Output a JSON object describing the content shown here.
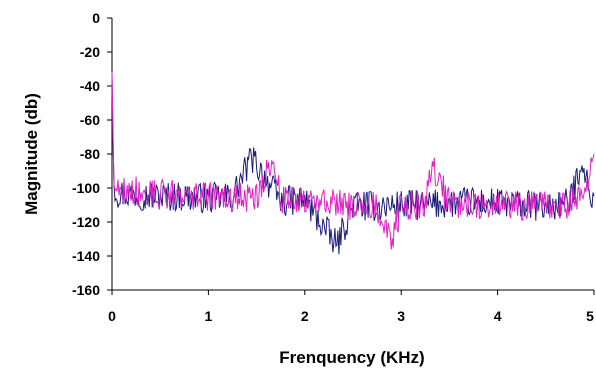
{
  "chart_data": {
    "type": "line",
    "title": "",
    "xlabel": "Frenquency (KHz)",
    "ylabel": "Magnitude (db)",
    "xlim": [
      0,
      5
    ],
    "ylim": [
      -160,
      0
    ],
    "x_ticks": [
      "0",
      "1",
      "2",
      "3",
      "4",
      "5"
    ],
    "y_ticks": [
      "0",
      "-20",
      "-40",
      "-60",
      "-80",
      "-100",
      "-120",
      "-140",
      "-160"
    ],
    "grid": false,
    "legend": "none",
    "series": [
      {
        "color": "#1a1a7a",
        "x": [
          0,
          0.02,
          0.05,
          0.25,
          0.5,
          0.75,
          1.0,
          1.25,
          1.45,
          1.75,
          2.0,
          2.33,
          2.5,
          2.75,
          3.0,
          3.25,
          3.5,
          3.75,
          4.0,
          4.25,
          4.5,
          4.75,
          4.88,
          4.95,
          5.0
        ],
        "y": [
          -33,
          -98,
          -103,
          -104,
          -105,
          -105,
          -106,
          -105,
          -82,
          -108,
          -107,
          -134,
          -110,
          -111,
          -110,
          -110,
          -109,
          -108,
          -109,
          -110,
          -111,
          -109,
          -82,
          -105,
          -103
        ]
      },
      {
        "color": "#e020c8",
        "x": [
          0,
          0.02,
          0.05,
          0.25,
          0.5,
          0.75,
          1.0,
          1.25,
          1.5,
          1.65,
          1.75,
          2.0,
          2.25,
          2.5,
          2.75,
          2.9,
          3.0,
          3.25,
          3.33,
          3.5,
          3.75,
          4.0,
          4.25,
          4.5,
          4.75,
          4.95,
          5.0
        ],
        "y": [
          -32,
          -98,
          -100,
          -102,
          -104,
          -104,
          -105,
          -106,
          -106,
          -83,
          -106,
          -108,
          -108,
          -110,
          -111,
          -133,
          -110,
          -110,
          -87,
          -109,
          -109,
          -110,
          -110,
          -111,
          -110,
          -95,
          -80
        ]
      }
    ]
  }
}
